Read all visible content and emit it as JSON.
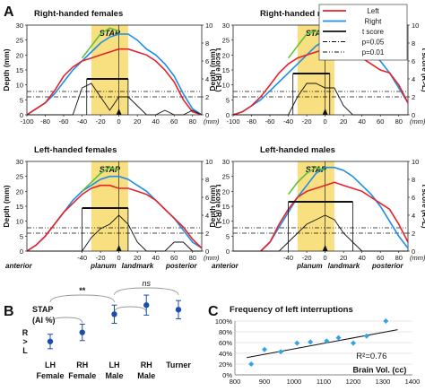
{
  "panel_labels": {
    "a": "A",
    "b": "B",
    "c": "C"
  },
  "chart_data": [
    {
      "type": "line",
      "panel": "A",
      "subplots": [
        {
          "title": "Right-handed females",
          "t_bar": {
            "x": [
              -35,
              10
            ],
            "t": 4.0
          }
        },
        {
          "title": "Right-handed males",
          "t_bar": {
            "x": [
              -35,
              5
            ],
            "t": 4.6
          }
        },
        {
          "title": "Left-handed females",
          "t_bar": {
            "x": [
              -40,
              10
            ],
            "t": 4.8
          }
        },
        {
          "title": "Left-handed males",
          "t_bar": {
            "x": [
              -40,
              30
            ],
            "t": 5.5
          }
        }
      ],
      "series": [
        {
          "name": "Left",
          "color": "#e8202a"
        },
        {
          "name": "Right",
          "color": "#1e8fe8"
        },
        {
          "name": "t score",
          "color": "#111111"
        },
        {
          "name": "p=0.05",
          "color": "#111111",
          "dash": "dashdot"
        },
        {
          "name": "p=0.01",
          "color": "#111111",
          "dash": "dashdotdot"
        }
      ],
      "curves": {
        "x": [
          -100,
          -90,
          -80,
          -70,
          -60,
          -50,
          -40,
          -30,
          -20,
          -10,
          0,
          10,
          20,
          30,
          40,
          50,
          60,
          70,
          80,
          90
        ],
        "RHF": {
          "left": [
            0,
            2,
            4,
            8,
            13,
            16,
            18,
            19,
            20,
            21,
            22,
            22,
            21,
            20,
            18,
            15,
            11,
            5,
            1,
            0
          ],
          "right": [
            0,
            2,
            4,
            7,
            11,
            15,
            18,
            21,
            24,
            26,
            27,
            27,
            25,
            22,
            20,
            17,
            13,
            7,
            2,
            0
          ],
          "stap": [
            null,
            null,
            null,
            null,
            null,
            null,
            19,
            23,
            27,
            29,
            28,
            null,
            null,
            null,
            null,
            null,
            null,
            null,
            null,
            null
          ]
        },
        "RHM": {
          "left": [
            0,
            1,
            3,
            6,
            10,
            14,
            17,
            19,
            20,
            21,
            22,
            22,
            21,
            20,
            19,
            17,
            15,
            14,
            10,
            4
          ],
          "right": [
            0,
            1,
            3,
            5,
            8,
            11,
            14,
            17,
            20,
            23,
            25,
            26,
            25,
            24,
            23,
            21,
            18,
            14,
            9,
            4
          ],
          "stap": [
            null,
            null,
            null,
            null,
            null,
            null,
            19,
            23,
            27,
            28,
            26,
            null,
            null,
            null,
            null,
            null,
            null,
            null,
            null,
            null
          ]
        },
        "LHF": {
          "left": [
            0,
            2,
            5,
            9,
            13,
            16,
            19,
            21,
            22,
            22,
            21,
            21,
            20,
            19,
            17,
            14,
            11,
            8,
            4,
            1
          ],
          "right": [
            0,
            2,
            5,
            9,
            13,
            17,
            20,
            22,
            24,
            25,
            25,
            24,
            22,
            20,
            17,
            14,
            11,
            7,
            3,
            1
          ],
          "stap": [
            null,
            null,
            null,
            null,
            null,
            null,
            20,
            23,
            26,
            28,
            27,
            null,
            null,
            null,
            null,
            null,
            null,
            null,
            null,
            null
          ]
        },
        "LHM": {
          "left": [
            null,
            null,
            null,
            0,
            3,
            9,
            14,
            18,
            20,
            21,
            22,
            23,
            22,
            21,
            20,
            18,
            16,
            14,
            9,
            3
          ],
          "right": [
            null,
            null,
            null,
            0,
            3,
            8,
            13,
            18,
            22,
            26,
            28,
            28,
            27,
            25,
            22,
            19,
            15,
            10,
            5,
            1
          ],
          "stap": [
            null,
            null,
            null,
            null,
            null,
            null,
            19,
            23,
            26,
            28,
            27,
            null,
            null,
            null,
            null,
            null,
            null,
            null,
            null,
            null
          ]
        },
        "t_score": {
          "RHF": [
            0,
            0,
            0,
            0,
            0,
            0,
            3,
            3.5,
            2,
            0.5,
            2,
            2,
            1,
            0,
            0,
            0.5,
            0,
            0,
            0.5,
            0
          ],
          "RHM": [
            0,
            0,
            0,
            0,
            0,
            0,
            0,
            2,
            3.5,
            3.5,
            3,
            3,
            1,
            0,
            0,
            0,
            0,
            0,
            0,
            0
          ],
          "LHF": [
            0,
            0,
            0,
            0,
            0,
            0,
            0,
            1.5,
            2.5,
            3,
            4,
            3,
            1,
            0,
            0,
            0,
            1,
            1,
            0,
            0
          ],
          "LHM": [
            0,
            0,
            0,
            0,
            0,
            0,
            1,
            2,
            3,
            3.5,
            4,
            3.5,
            2,
            1,
            0,
            0,
            0,
            0,
            0,
            0
          ]
        }
      },
      "x_ticks": [
        -100,
        -80,
        -60,
        -40,
        -20,
        0,
        20,
        40,
        60,
        80
      ],
      "x_ticks_lower": [
        -40,
        -20,
        0,
        20,
        40,
        60,
        80
      ],
      "y_ticks": [
        0,
        5,
        10,
        15,
        20,
        25,
        30
      ],
      "t_ticks": [
        0,
        2,
        4,
        6,
        8,
        10
      ],
      "x_unit": "(mm)",
      "ylabel": "Depth (mm)",
      "ylabel2": "t score (R>L)",
      "stap_label": "STAP",
      "anterior_label": "anterior",
      "posterior_label": "posterior",
      "planum_label": "planum",
      "landmark_label": "landmark",
      "ylim": [
        0,
        30
      ],
      "t_ylim": [
        0,
        10
      ],
      "stap_range": [
        -30,
        10
      ],
      "p_lines": {
        "p05": 2.0,
        "p01": 2.6
      }
    },
    {
      "type": "scatter",
      "panel": "B",
      "title": "STAP",
      "ylabel": "(AI %)",
      "y_markers": [
        "R",
        ">",
        "L"
      ],
      "categories": [
        [
          "LH",
          "Female"
        ],
        [
          "RH",
          "Female"
        ],
        [
          "LH",
          "Male"
        ],
        [
          "RH",
          "Male"
        ],
        [
          "Turner",
          ""
        ]
      ],
      "values": [
        1.5,
        2.5,
        4.5,
        5.5,
        5.0
      ],
      "errors": [
        0.8,
        0.9,
        1.0,
        1.1,
        1.0
      ],
      "significance": [
        {
          "from": 0,
          "to": 2,
          "label": "**"
        },
        {
          "from": 2,
          "to": 4,
          "label": "ns"
        }
      ],
      "color": "#1a4ea8"
    },
    {
      "type": "scatter",
      "panel": "C",
      "title": "Frequency of left interruptions",
      "xlabel": "Brain Vol. (cc)",
      "x_ticks": [
        800,
        900,
        1000,
        1100,
        1200,
        1300,
        1400
      ],
      "y_ticks": [
        "0%",
        "20%",
        "40%",
        "60%",
        "80%",
        "100%"
      ],
      "points": [
        {
          "x": 855,
          "y": 20
        },
        {
          "x": 900,
          "y": 47
        },
        {
          "x": 955,
          "y": 43
        },
        {
          "x": 1010,
          "y": 59
        },
        {
          "x": 1055,
          "y": 61
        },
        {
          "x": 1110,
          "y": 63
        },
        {
          "x": 1150,
          "y": 69
        },
        {
          "x": 1200,
          "y": 59
        },
        {
          "x": 1245,
          "y": 72
        },
        {
          "x": 1310,
          "y": 100
        }
      ],
      "trend": {
        "x": [
          840,
          1350
        ],
        "y": [
          32,
          84
        ]
      },
      "r2_label": "R²=0.76",
      "marker_color": "#33a3e8",
      "xlim": [
        800,
        1400
      ],
      "ylim": [
        0,
        100
      ]
    }
  ]
}
